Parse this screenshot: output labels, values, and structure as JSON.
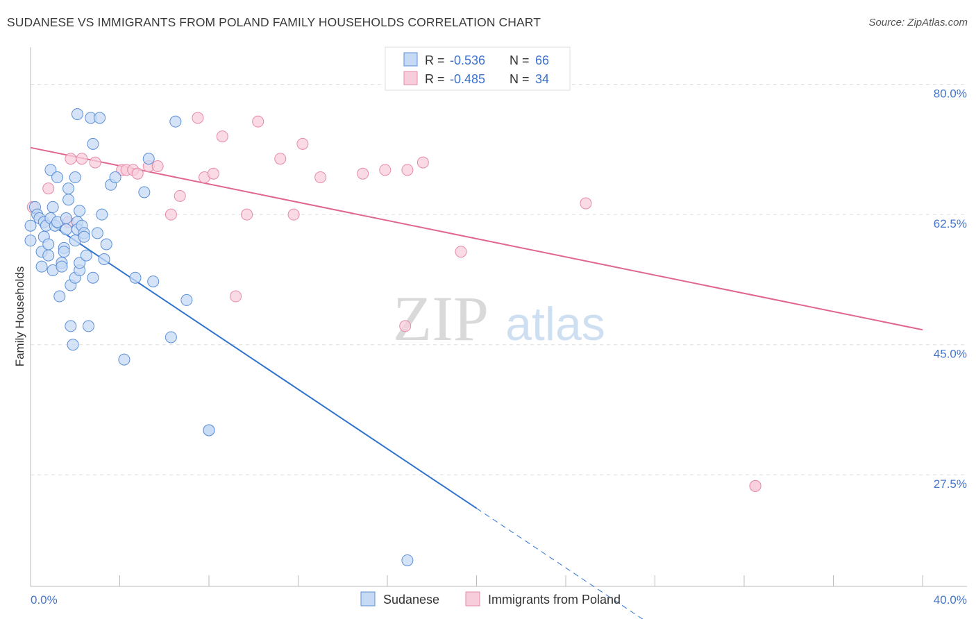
{
  "title": "SUDANESE VS IMMIGRANTS FROM POLAND FAMILY HOUSEHOLDS CORRELATION CHART",
  "source": "Source: ZipAtlas.com",
  "watermark": {
    "zip": "ZIP",
    "atlas": "atlas"
  },
  "colors": {
    "blue_fill": "#c6d9f5",
    "blue_stroke": "#5b8fd6",
    "blue_line": "#2f73d0",
    "pink_fill": "#f8cddb",
    "pink_stroke": "#e68aa8",
    "pink_line": "#e0668f",
    "axis_label": "#4477cc",
    "grid": "#dddddd"
  },
  "legend_box": {
    "rows": [
      {
        "r_label": "R =",
        "r_value": "-0.536",
        "n_label": "N =",
        "n_value": "66",
        "color": "blue"
      },
      {
        "r_label": "R =",
        "r_value": "-0.485",
        "n_label": "N =",
        "n_value": "34",
        "color": "pink"
      }
    ]
  },
  "chart_data": {
    "type": "scatter",
    "xlabel": "",
    "ylabel": "Family Households",
    "xlim": [
      0.0,
      40.0
    ],
    "ylim": [
      12.5,
      85.0
    ],
    "x_ticklabels": [
      "0.0%",
      "40.0%"
    ],
    "y_ticks": [
      27.5,
      45.0,
      62.5,
      80.0
    ],
    "y_ticklabels": [
      "27.5%",
      "45.0%",
      "62.5%",
      "80.0%"
    ],
    "grid": true,
    "legend": [
      "Sudanese",
      "Immigrants from Poland"
    ],
    "legend_placement": "bottom-center",
    "series": [
      {
        "name": "Sudanese",
        "color": "blue",
        "trend": {
          "x0": 0.0,
          "y0": 63.0,
          "x_solid_end": 20.0,
          "x_dashed_end": 28.0
        },
        "points": [
          [
            0.0,
            61.0
          ],
          [
            0.0,
            59.0
          ],
          [
            0.2,
            63.5
          ],
          [
            0.3,
            62.5
          ],
          [
            0.4,
            62.0
          ],
          [
            0.5,
            57.5
          ],
          [
            0.5,
            55.5
          ],
          [
            0.6,
            61.5
          ],
          [
            0.6,
            59.5
          ],
          [
            0.7,
            61.0
          ],
          [
            0.8,
            57.0
          ],
          [
            0.8,
            58.5
          ],
          [
            0.9,
            68.5
          ],
          [
            0.9,
            62.0
          ],
          [
            1.0,
            63.5
          ],
          [
            1.0,
            55.0
          ],
          [
            1.1,
            61.0
          ],
          [
            1.2,
            67.5
          ],
          [
            1.2,
            61.5
          ],
          [
            1.3,
            51.5
          ],
          [
            1.4,
            56.0
          ],
          [
            1.4,
            55.5
          ],
          [
            1.5,
            58.0
          ],
          [
            1.5,
            57.5
          ],
          [
            1.6,
            62.0
          ],
          [
            1.6,
            60.5
          ],
          [
            1.7,
            64.5
          ],
          [
            1.7,
            66.0
          ],
          [
            1.8,
            53.0
          ],
          [
            1.8,
            47.5
          ],
          [
            1.9,
            45.0
          ],
          [
            2.0,
            59.0
          ],
          [
            2.0,
            54.0
          ],
          [
            2.0,
            67.5
          ],
          [
            2.1,
            61.5
          ],
          [
            2.1,
            60.5
          ],
          [
            2.1,
            76.0
          ],
          [
            2.2,
            55.0
          ],
          [
            2.2,
            56.0
          ],
          [
            2.2,
            63.0
          ],
          [
            2.3,
            61.0
          ],
          [
            2.4,
            60.0
          ],
          [
            2.4,
            59.5
          ],
          [
            2.5,
            57.0
          ],
          [
            2.6,
            47.5
          ],
          [
            2.7,
            75.5
          ],
          [
            2.8,
            72.0
          ],
          [
            2.8,
            54.0
          ],
          [
            3.0,
            60.0
          ],
          [
            3.1,
            75.5
          ],
          [
            3.2,
            62.5
          ],
          [
            3.3,
            56.5
          ],
          [
            3.4,
            58.5
          ],
          [
            3.6,
            66.5
          ],
          [
            3.8,
            67.5
          ],
          [
            4.2,
            43.0
          ],
          [
            4.7,
            54.0
          ],
          [
            5.1,
            65.5
          ],
          [
            5.3,
            70.0
          ],
          [
            5.5,
            53.5
          ],
          [
            6.3,
            46.0
          ],
          [
            6.5,
            75.0
          ],
          [
            7.0,
            51.0
          ],
          [
            8.0,
            33.5
          ],
          [
            8.0,
            33.5
          ],
          [
            16.9,
            16.0
          ]
        ]
      },
      {
        "name": "Immigrants from Poland",
        "color": "pink",
        "trend": {
          "x0": 0.0,
          "y0": 71.5,
          "x1": 40.0,
          "y1": 47.0
        },
        "points": [
          [
            0.1,
            63.5
          ],
          [
            0.8,
            66.0
          ],
          [
            1.7,
            61.5
          ],
          [
            1.8,
            70.0
          ],
          [
            2.3,
            70.0
          ],
          [
            2.9,
            69.5
          ],
          [
            4.1,
            68.5
          ],
          [
            4.3,
            68.5
          ],
          [
            4.6,
            68.5
          ],
          [
            4.8,
            68.0
          ],
          [
            5.3,
            69.0
          ],
          [
            5.7,
            69.0
          ],
          [
            6.3,
            62.5
          ],
          [
            6.7,
            65.0
          ],
          [
            7.5,
            75.5
          ],
          [
            7.8,
            67.5
          ],
          [
            8.2,
            68.0
          ],
          [
            8.6,
            73.0
          ],
          [
            9.2,
            51.5
          ],
          [
            9.7,
            62.5
          ],
          [
            10.2,
            75.0
          ],
          [
            11.2,
            70.0
          ],
          [
            11.8,
            62.5
          ],
          [
            12.2,
            72.0
          ],
          [
            13.0,
            67.5
          ],
          [
            14.9,
            68.0
          ],
          [
            15.9,
            68.5
          ],
          [
            16.8,
            47.5
          ],
          [
            16.9,
            68.5
          ],
          [
            17.6,
            69.5
          ],
          [
            19.3,
            57.5
          ],
          [
            24.9,
            64.0
          ],
          [
            32.5,
            26.0
          ],
          [
            32.5,
            26.0
          ]
        ]
      }
    ]
  }
}
